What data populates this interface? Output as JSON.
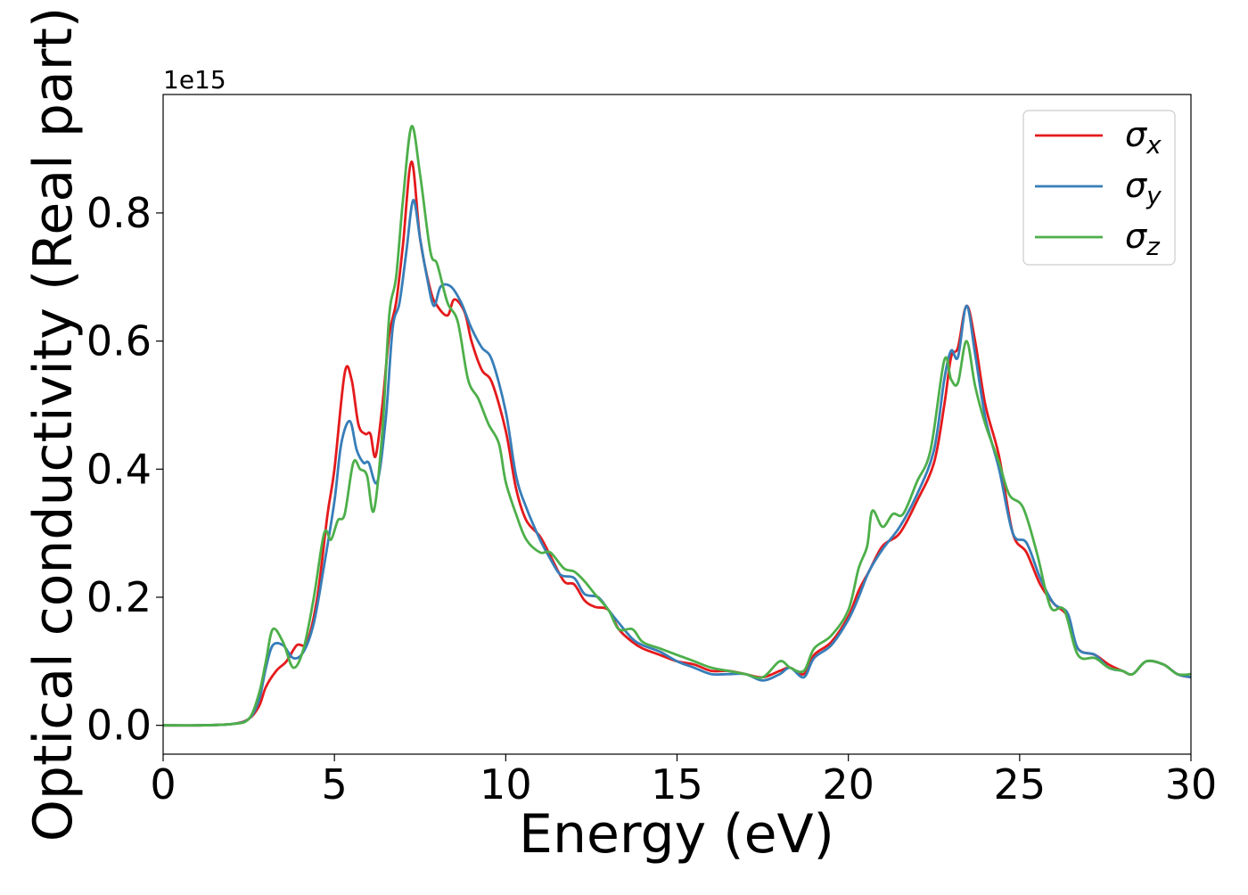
{
  "chart_data": {
    "type": "line",
    "xlabel": "Energy (eV)",
    "ylabel": "Optical conductivity (Real part)",
    "y_offset_label": "1e15",
    "y_scale": 1000000000000000.0,
    "xlim": [
      0,
      30
    ],
    "ylim": [
      -0.045,
      0.985
    ],
    "x_ticks": [
      0,
      5,
      10,
      15,
      20,
      25,
      30
    ],
    "x_tick_labels": [
      "0",
      "5",
      "10",
      "15",
      "20",
      "25",
      "30"
    ],
    "y_ticks": [
      0.0,
      0.2,
      0.4,
      0.6,
      0.8
    ],
    "y_tick_labels": [
      "0.0",
      "0.2",
      "0.4",
      "0.6",
      "0.8"
    ],
    "grid": false,
    "legend_position": "top-right",
    "series": [
      {
        "name": "σ_x",
        "legend_symbol": "σ",
        "legend_sub": "x",
        "color": "#e41a1c",
        "points": [
          [
            0,
            0
          ],
          [
            1,
            0
          ],
          [
            2,
            0.002
          ],
          [
            2.5,
            0.01
          ],
          [
            2.8,
            0.03
          ],
          [
            3.0,
            0.06
          ],
          [
            3.3,
            0.085
          ],
          [
            3.6,
            0.1
          ],
          [
            3.9,
            0.125
          ],
          [
            4.2,
            0.13
          ],
          [
            4.5,
            0.2
          ],
          [
            4.8,
            0.33
          ],
          [
            5.0,
            0.4
          ],
          [
            5.3,
            0.55
          ],
          [
            5.5,
            0.54
          ],
          [
            5.7,
            0.47
          ],
          [
            5.9,
            0.455
          ],
          [
            6.05,
            0.455
          ],
          [
            6.2,
            0.42
          ],
          [
            6.4,
            0.5
          ],
          [
            6.6,
            0.61
          ],
          [
            6.8,
            0.66
          ],
          [
            7.0,
            0.75
          ],
          [
            7.25,
            0.88
          ],
          [
            7.5,
            0.76
          ],
          [
            7.8,
            0.68
          ],
          [
            8.0,
            0.655
          ],
          [
            8.3,
            0.64
          ],
          [
            8.5,
            0.665
          ],
          [
            8.8,
            0.645
          ],
          [
            9.0,
            0.6
          ],
          [
            9.3,
            0.555
          ],
          [
            9.6,
            0.535
          ],
          [
            10.0,
            0.46
          ],
          [
            10.3,
            0.37
          ],
          [
            10.6,
            0.32
          ],
          [
            11.0,
            0.295
          ],
          [
            11.3,
            0.265
          ],
          [
            11.7,
            0.225
          ],
          [
            12.0,
            0.22
          ],
          [
            12.3,
            0.195
          ],
          [
            12.6,
            0.185
          ],
          [
            13.0,
            0.18
          ],
          [
            13.3,
            0.15
          ],
          [
            13.7,
            0.13
          ],
          [
            14.0,
            0.12
          ],
          [
            14.5,
            0.11
          ],
          [
            15.0,
            0.1
          ],
          [
            15.5,
            0.095
          ],
          [
            16.0,
            0.085
          ],
          [
            16.5,
            0.085
          ],
          [
            17.0,
            0.08
          ],
          [
            17.5,
            0.075
          ],
          [
            18.0,
            0.085
          ],
          [
            18.3,
            0.09
          ],
          [
            18.7,
            0.08
          ],
          [
            19.0,
            0.11
          ],
          [
            19.5,
            0.13
          ],
          [
            20.0,
            0.17
          ],
          [
            20.3,
            0.21
          ],
          [
            20.6,
            0.24
          ],
          [
            21.0,
            0.28
          ],
          [
            21.5,
            0.3
          ],
          [
            22.0,
            0.35
          ],
          [
            22.5,
            0.41
          ],
          [
            22.8,
            0.5
          ],
          [
            23.0,
            0.575
          ],
          [
            23.2,
            0.59
          ],
          [
            23.45,
            0.655
          ],
          [
            23.7,
            0.6
          ],
          [
            24.0,
            0.5
          ],
          [
            24.4,
            0.42
          ],
          [
            24.8,
            0.3
          ],
          [
            25.2,
            0.27
          ],
          [
            25.6,
            0.22
          ],
          [
            26.0,
            0.19
          ],
          [
            26.4,
            0.17
          ],
          [
            26.7,
            0.12
          ],
          [
            27.2,
            0.11
          ],
          [
            27.6,
            0.095
          ],
          [
            28.0,
            0.085
          ],
          [
            28.3,
            0.08
          ],
          [
            28.7,
            0.1
          ],
          [
            29.2,
            0.095
          ],
          [
            29.6,
            0.08
          ],
          [
            30.0,
            0.075
          ]
        ]
      },
      {
        "name": "σ_y",
        "legend_symbol": "σ",
        "legend_sub": "y",
        "color": "#377eb8",
        "points": [
          [
            0,
            0
          ],
          [
            1,
            0
          ],
          [
            2,
            0.002
          ],
          [
            2.5,
            0.01
          ],
          [
            2.8,
            0.04
          ],
          [
            3.0,
            0.09
          ],
          [
            3.2,
            0.125
          ],
          [
            3.5,
            0.125
          ],
          [
            3.8,
            0.105
          ],
          [
            4.1,
            0.115
          ],
          [
            4.4,
            0.16
          ],
          [
            4.7,
            0.25
          ],
          [
            5.0,
            0.35
          ],
          [
            5.2,
            0.44
          ],
          [
            5.45,
            0.475
          ],
          [
            5.65,
            0.43
          ],
          [
            5.85,
            0.41
          ],
          [
            6.0,
            0.41
          ],
          [
            6.25,
            0.38
          ],
          [
            6.5,
            0.48
          ],
          [
            6.7,
            0.62
          ],
          [
            6.9,
            0.66
          ],
          [
            7.1,
            0.74
          ],
          [
            7.3,
            0.82
          ],
          [
            7.5,
            0.76
          ],
          [
            7.7,
            0.7
          ],
          [
            7.9,
            0.655
          ],
          [
            8.1,
            0.685
          ],
          [
            8.4,
            0.685
          ],
          [
            8.7,
            0.66
          ],
          [
            9.0,
            0.62
          ],
          [
            9.3,
            0.59
          ],
          [
            9.6,
            0.57
          ],
          [
            10.0,
            0.49
          ],
          [
            10.3,
            0.39
          ],
          [
            10.6,
            0.34
          ],
          [
            11.0,
            0.29
          ],
          [
            11.3,
            0.26
          ],
          [
            11.6,
            0.235
          ],
          [
            12.0,
            0.23
          ],
          [
            12.3,
            0.205
          ],
          [
            12.7,
            0.2
          ],
          [
            13.0,
            0.18
          ],
          [
            13.3,
            0.16
          ],
          [
            13.7,
            0.135
          ],
          [
            14.0,
            0.125
          ],
          [
            14.5,
            0.115
          ],
          [
            15.0,
            0.1
          ],
          [
            15.5,
            0.09
          ],
          [
            16.0,
            0.08
          ],
          [
            16.5,
            0.08
          ],
          [
            17.0,
            0.08
          ],
          [
            17.5,
            0.07
          ],
          [
            18.0,
            0.08
          ],
          [
            18.3,
            0.09
          ],
          [
            18.7,
            0.075
          ],
          [
            19.0,
            0.105
          ],
          [
            19.5,
            0.125
          ],
          [
            20.0,
            0.165
          ],
          [
            20.3,
            0.2
          ],
          [
            20.6,
            0.24
          ],
          [
            21.0,
            0.275
          ],
          [
            21.5,
            0.31
          ],
          [
            22.0,
            0.36
          ],
          [
            22.5,
            0.43
          ],
          [
            22.8,
            0.54
          ],
          [
            23.0,
            0.585
          ],
          [
            23.2,
            0.575
          ],
          [
            23.45,
            0.655
          ],
          [
            23.7,
            0.58
          ],
          [
            24.0,
            0.48
          ],
          [
            24.4,
            0.4
          ],
          [
            24.8,
            0.3
          ],
          [
            25.2,
            0.285
          ],
          [
            25.6,
            0.23
          ],
          [
            26.0,
            0.19
          ],
          [
            26.4,
            0.175
          ],
          [
            26.7,
            0.12
          ],
          [
            27.2,
            0.11
          ],
          [
            27.6,
            0.09
          ],
          [
            28.0,
            0.085
          ],
          [
            28.3,
            0.08
          ],
          [
            28.7,
            0.1
          ],
          [
            29.2,
            0.095
          ],
          [
            29.6,
            0.08
          ],
          [
            30.0,
            0.075
          ]
        ]
      },
      {
        "name": "σ_z",
        "legend_symbol": "σ",
        "legend_sub": "z",
        "color": "#4daf4a",
        "points": [
          [
            0,
            0
          ],
          [
            1,
            0
          ],
          [
            2,
            0.002
          ],
          [
            2.5,
            0.01
          ],
          [
            2.8,
            0.05
          ],
          [
            3.0,
            0.1
          ],
          [
            3.2,
            0.15
          ],
          [
            3.5,
            0.13
          ],
          [
            3.8,
            0.09
          ],
          [
            4.1,
            0.12
          ],
          [
            4.4,
            0.2
          ],
          [
            4.7,
            0.3
          ],
          [
            4.9,
            0.29
          ],
          [
            5.1,
            0.32
          ],
          [
            5.3,
            0.33
          ],
          [
            5.55,
            0.41
          ],
          [
            5.75,
            0.4
          ],
          [
            5.95,
            0.39
          ],
          [
            6.15,
            0.335
          ],
          [
            6.4,
            0.46
          ],
          [
            6.6,
            0.64
          ],
          [
            6.8,
            0.7
          ],
          [
            7.0,
            0.82
          ],
          [
            7.25,
            0.935
          ],
          [
            7.5,
            0.86
          ],
          [
            7.8,
            0.74
          ],
          [
            8.0,
            0.72
          ],
          [
            8.3,
            0.66
          ],
          [
            8.6,
            0.63
          ],
          [
            8.9,
            0.54
          ],
          [
            9.2,
            0.51
          ],
          [
            9.5,
            0.47
          ],
          [
            9.8,
            0.44
          ],
          [
            10.0,
            0.38
          ],
          [
            10.3,
            0.33
          ],
          [
            10.6,
            0.29
          ],
          [
            11.0,
            0.27
          ],
          [
            11.3,
            0.27
          ],
          [
            11.7,
            0.245
          ],
          [
            12.0,
            0.24
          ],
          [
            12.3,
            0.225
          ],
          [
            12.6,
            0.205
          ],
          [
            13.0,
            0.18
          ],
          [
            13.3,
            0.15
          ],
          [
            13.7,
            0.15
          ],
          [
            14.0,
            0.13
          ],
          [
            14.5,
            0.12
          ],
          [
            15.0,
            0.11
          ],
          [
            15.5,
            0.1
          ],
          [
            16.0,
            0.09
          ],
          [
            16.5,
            0.085
          ],
          [
            17.0,
            0.08
          ],
          [
            17.5,
            0.075
          ],
          [
            18.0,
            0.1
          ],
          [
            18.3,
            0.09
          ],
          [
            18.7,
            0.085
          ],
          [
            19.0,
            0.12
          ],
          [
            19.5,
            0.14
          ],
          [
            20.0,
            0.18
          ],
          [
            20.3,
            0.245
          ],
          [
            20.55,
            0.28
          ],
          [
            20.7,
            0.335
          ],
          [
            21.0,
            0.31
          ],
          [
            21.3,
            0.33
          ],
          [
            21.6,
            0.33
          ],
          [
            22.0,
            0.38
          ],
          [
            22.4,
            0.43
          ],
          [
            22.8,
            0.57
          ],
          [
            23.0,
            0.54
          ],
          [
            23.2,
            0.535
          ],
          [
            23.45,
            0.6
          ],
          [
            23.7,
            0.53
          ],
          [
            24.0,
            0.47
          ],
          [
            24.4,
            0.41
          ],
          [
            24.7,
            0.36
          ],
          [
            25.1,
            0.34
          ],
          [
            25.5,
            0.27
          ],
          [
            25.9,
            0.185
          ],
          [
            26.3,
            0.18
          ],
          [
            26.7,
            0.11
          ],
          [
            27.2,
            0.105
          ],
          [
            27.6,
            0.09
          ],
          [
            28.0,
            0.085
          ],
          [
            28.3,
            0.08
          ],
          [
            28.7,
            0.1
          ],
          [
            29.2,
            0.095
          ],
          [
            29.6,
            0.08
          ],
          [
            30.0,
            0.08
          ]
        ]
      }
    ]
  }
}
